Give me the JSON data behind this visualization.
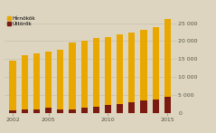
{
  "years": [
    2002,
    2003,
    2004,
    2005,
    2006,
    2007,
    2008,
    2009,
    2010,
    2011,
    2012,
    2013,
    2014,
    2015
  ],
  "hirnokok": [
    14500,
    16000,
    16500,
    17000,
    17500,
    19500,
    20200,
    20800,
    21200,
    21800,
    22300,
    23200,
    24000,
    26200
  ],
  "uttorок": [
    700,
    900,
    1100,
    1500,
    900,
    1100,
    1500,
    1800,
    2200,
    2600,
    3000,
    3400,
    3800,
    4600
  ],
  "hirnokок_color": "#E8A800",
  "uttorок_color": "#7A1A10",
  "background_color": "#DDD5C0",
  "gridcolor": "#C8C0B0",
  "ylabel_right": [
    "0",
    "5 000",
    "10 000",
    "15 000",
    "20 000",
    "25 000"
  ],
  "yticks": [
    0,
    5000,
    10000,
    15000,
    20000,
    25000
  ],
  "ylim": [
    0,
    27000
  ],
  "legend_hirnokок": "Hírnökök",
  "legend_uttorок": "Úttörők",
  "bar_width": 0.55,
  "xtick_labels": [
    "2002",
    "2005",
    "2010",
    "2015"
  ],
  "xticks": [
    2002,
    2005,
    2010,
    2015
  ]
}
